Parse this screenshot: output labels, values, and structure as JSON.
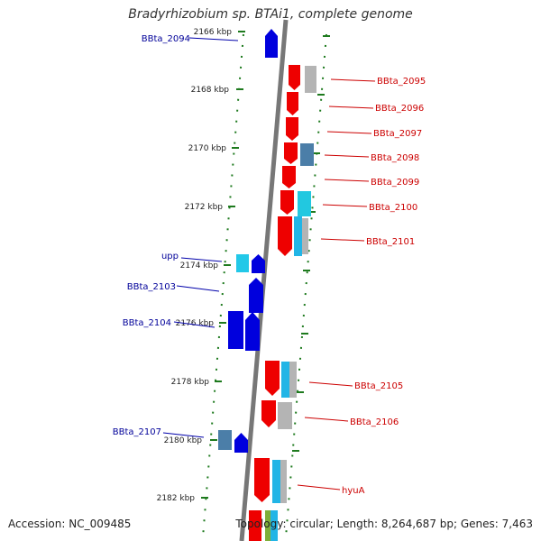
{
  "title": "Bradyrhizobium sp. BTAi1, complete genome",
  "accession": "Accession: NC_009485",
  "summary": "Topology: circular; Length: 8,264,687 bp; Genes: 7,463",
  "colors": {
    "backbone": "#7a7a7a",
    "tick": "#1e7a1e",
    "forward_gene": "#ee0000",
    "reverse_gene": "#0000dd",
    "forward_label": "#cc0000",
    "reverse_label": "#000099",
    "cyan": "#22b5e6",
    "steel": "#4b7ea8",
    "gray": "#b4b4b4"
  },
  "scale_ticks": [
    "2166 kbp",
    "2168 kbp",
    "2170 kbp",
    "2172 kbp",
    "2174 kbp",
    "2176 kbp",
    "2178 kbp",
    "2180 kbp",
    "2182 kbp"
  ],
  "forward_labels": [
    "BBta_2095",
    "BBta_2096",
    "BBta_2097",
    "BBta_2098",
    "BBta_2099",
    "BBta_2100",
    "BBta_2101",
    "BBta_2105",
    "BBta_2106",
    "hyuA"
  ],
  "reverse_labels": [
    "BBta_2094",
    "upp",
    "BBta_2103",
    "BBta_2104",
    "BBta_2107"
  ]
}
